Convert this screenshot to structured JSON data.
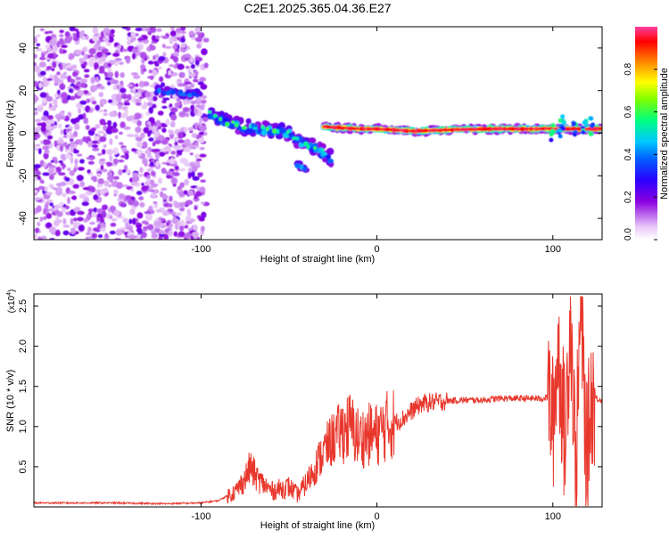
{
  "title": "C2E1.2025.365.04.36.E27",
  "colors": {
    "signal": "#e8372c",
    "frame": "#000000",
    "background": "#ffffff"
  },
  "chart_data": [
    {
      "type": "heatmap",
      "xlabel": "Height of straight line (km)",
      "ylabel": "Frequency (Hz)",
      "xlim": [
        -195,
        128
      ],
      "ylim": [
        -50,
        50
      ],
      "xticks": [
        -100,
        0,
        100
      ],
      "yticks": [
        -40,
        -20,
        0,
        20,
        40
      ],
      "colorbar": {
        "label": "Normalized spectral amplitude",
        "range": [
          0,
          1
        ],
        "ticks": [
          "0.0",
          "0.2",
          "0.4",
          "0.6",
          "0.8"
        ],
        "colormap": [
          "#ffffff",
          "#7b00d8",
          "#0000ff",
          "#00c8ff",
          "#00ff60",
          "#ffff00",
          "#ff8000",
          "#ff0000",
          "#ff2090"
        ]
      },
      "features": [
        {
          "name": "noise",
          "x_range": [
            -195,
            -97
          ],
          "y_range": [
            -50,
            50
          ],
          "level": 0.18
        },
        {
          "name": "upper-branch",
          "points": [
            [
              -125,
              20
            ],
            [
              -113,
              19
            ],
            [
              -100,
              18
            ]
          ],
          "level": 0.4
        },
        {
          "name": "lower-branch",
          "points": [
            [
              -95,
              9
            ],
            [
              -85,
              5
            ],
            [
              -75,
              3
            ],
            [
              -65,
              2
            ],
            [
              -55,
              1
            ],
            [
              -45,
              -3
            ],
            [
              -35,
              -7
            ],
            [
              -25,
              -12
            ]
          ],
          "level": 0.45
        },
        {
          "name": "side-echo",
          "points": [
            [
              -45,
              -15
            ],
            [
              -40,
              -17
            ]
          ],
          "level": 0.3
        },
        {
          "name": "main-line",
          "points": [
            [
              -30,
              3
            ],
            [
              -10,
              2
            ],
            [
              0,
              2
            ],
            [
              20,
              1
            ],
            [
              60,
              2
            ],
            [
              100,
              2
            ],
            [
              128,
              2
            ]
          ],
          "level": 0.95
        }
      ]
    },
    {
      "type": "line",
      "xlabel": "Height of straight line (km)",
      "ylabel": "SNR (10 * v/v)",
      "yscale_label": "(x10",
      "yscale_exponent": "4",
      "xlim": [
        -195,
        128
      ],
      "ylim": [
        0,
        2.65
      ],
      "xticks": [
        -100,
        0,
        100
      ],
      "yticks": [
        0.5,
        1.0,
        1.5,
        2.0,
        2.5
      ],
      "series": [
        {
          "name": "SNR",
          "x": [
            -195,
            -150,
            -120,
            -100,
            -90,
            -80,
            -75,
            -72,
            -68,
            -60,
            -50,
            -45,
            -40,
            -35,
            -30,
            -25,
            -20,
            -15,
            -10,
            -5,
            0,
            5,
            10,
            15,
            20,
            25,
            30,
            40,
            50,
            60,
            70,
            80,
            90,
            95,
            98,
            100,
            103,
            107,
            110,
            113,
            116,
            119,
            122,
            125,
            128
          ],
          "y": [
            0.05,
            0.05,
            0.04,
            0.05,
            0.08,
            0.2,
            0.35,
            0.5,
            0.35,
            0.2,
            0.25,
            0.15,
            0.3,
            0.5,
            0.7,
            0.85,
            0.95,
            1.0,
            0.85,
            0.9,
            0.9,
            1.0,
            1.05,
            1.1,
            1.2,
            1.28,
            1.3,
            1.32,
            1.33,
            1.33,
            1.35,
            1.35,
            1.35,
            1.35,
            1.38,
            1.0,
            2.0,
            0.8,
            2.5,
            0.4,
            2.6,
            0.6,
            1.4,
            1.35,
            1.33
          ]
        }
      ]
    }
  ]
}
